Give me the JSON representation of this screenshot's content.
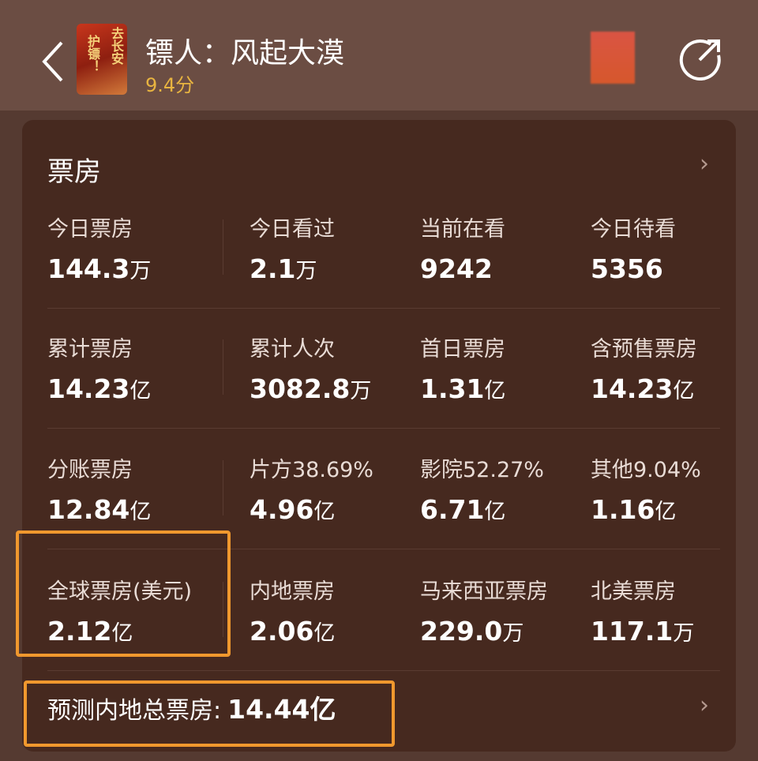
{
  "header": {
    "title": "镖人：风起大漠",
    "score": "9.4分",
    "poster_text": [
      "去长安",
      "护镖！"
    ]
  },
  "card": {
    "title": "票房"
  },
  "rows": [
    [
      {
        "label": "今日票房",
        "value": "144.3",
        "unit": "万"
      },
      {
        "label": "今日看过",
        "value": "2.1",
        "unit": "万"
      },
      {
        "label": "当前在看",
        "value": "9242",
        "unit": ""
      },
      {
        "label": "今日待看",
        "value": "5356",
        "unit": ""
      }
    ],
    [
      {
        "label": "累计票房",
        "value": "14.23",
        "unit": "亿"
      },
      {
        "label": "累计人次",
        "value": "3082.8",
        "unit": "万"
      },
      {
        "label": "首日票房",
        "value": "1.31",
        "unit": "亿"
      },
      {
        "label": "含预售票房",
        "value": "14.23",
        "unit": "亿"
      }
    ],
    [
      {
        "label": "分账票房",
        "value": "12.84",
        "unit": "亿"
      },
      {
        "label": "片方38.69%",
        "value": "4.96",
        "unit": "亿"
      },
      {
        "label": "影院52.27%",
        "value": "6.71",
        "unit": "亿"
      },
      {
        "label": "其他9.04%",
        "value": "1.16",
        "unit": "亿"
      }
    ],
    [
      {
        "label": "全球票房(美元)",
        "value": "2.12",
        "unit": "亿"
      },
      {
        "label": "内地票房",
        "value": "2.06",
        "unit": "亿"
      },
      {
        "label": "马来西亚票房",
        "value": "229.0",
        "unit": "万"
      },
      {
        "label": "北美票房",
        "value": "117.1",
        "unit": "万"
      }
    ]
  ],
  "forecast": {
    "label": "预测内地总票房:",
    "value": "14.44亿"
  },
  "colors": {
    "highlight": "#f0982e",
    "score": "#e8b440"
  }
}
